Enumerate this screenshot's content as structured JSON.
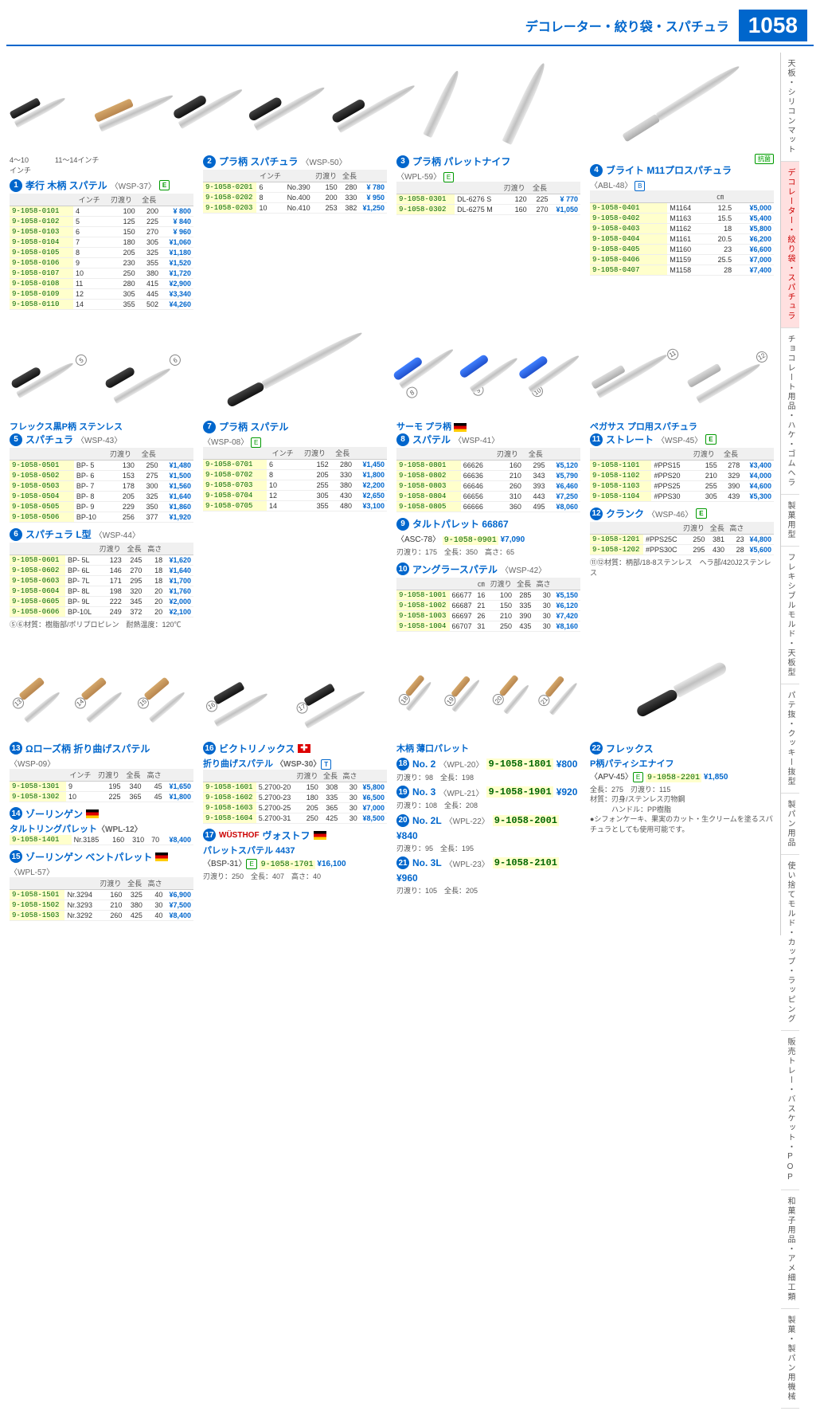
{
  "header": {
    "title": "デコレーター・絞り袋・スパチュラ",
    "page": "1058"
  },
  "sidecats": [
    "天板・シリコンマット",
    "デコレーター・絞り袋・スパチュラ",
    "チョコレート用品・ハケ・ゴムヘラ",
    "製菓用型",
    "フレキシブルモルド・天板型",
    "パテ抜・クッキー抜型",
    "製パン用品",
    "使い捨てモルド・カップ・ラッピング",
    "販売トレー・バスケット・POP",
    "和菓子用品・アメ細工類",
    "製菓・製パン用機械"
  ],
  "p1": {
    "num": "1",
    "name": "孝行 木柄 スパテル",
    "code": "〈WSP-37〉",
    "badge": "E",
    "cols": [
      "",
      "インチ",
      "刃渡り",
      "全長",
      ""
    ],
    "rows": [
      [
        "9-1058-0101",
        "4",
        "100",
        "200",
        "¥ 800"
      ],
      [
        "9-1058-0102",
        "5",
        "125",
        "225",
        "¥ 840"
      ],
      [
        "9-1058-0103",
        "6",
        "150",
        "270",
        "¥ 960"
      ],
      [
        "9-1058-0104",
        "7",
        "180",
        "305",
        "¥1,060"
      ],
      [
        "9-1058-0105",
        "8",
        "205",
        "325",
        "¥1,180"
      ],
      [
        "9-1058-0106",
        "9",
        "230",
        "355",
        "¥1,520"
      ],
      [
        "9-1058-0107",
        "10",
        "250",
        "380",
        "¥1,720"
      ],
      [
        "9-1058-0108",
        "11",
        "280",
        "415",
        "¥2,900"
      ],
      [
        "9-1058-0109",
        "12",
        "305",
        "445",
        "¥3,340"
      ],
      [
        "9-1058-0110",
        "14",
        "355",
        "502",
        "¥4,260"
      ]
    ],
    "lbl1": "4～10\nインチ",
    "lbl2": "11～14インチ"
  },
  "p2": {
    "num": "2",
    "name": "プラ柄 スパチュラ",
    "code": "〈WSP-50〉",
    "cols": [
      "",
      "インチ",
      "",
      "刃渡り",
      "全長",
      ""
    ],
    "rows": [
      [
        "9-1058-0201",
        "6",
        "No.390",
        "150",
        "280",
        "¥ 780"
      ],
      [
        "9-1058-0202",
        "8",
        "No.400",
        "200",
        "330",
        "¥ 950"
      ],
      [
        "9-1058-0203",
        "10",
        "No.410",
        "253",
        "382",
        "¥1,250"
      ]
    ]
  },
  "p3": {
    "num": "3",
    "name": "プラ柄 パレットナイフ",
    "code": "〈WPL-59〉",
    "badge": "E",
    "cols": [
      "",
      "",
      "刃渡り",
      "全長",
      ""
    ],
    "rows": [
      [
        "9-1058-0301",
        "DL-6276 S",
        "120",
        "225",
        "¥ 770"
      ],
      [
        "9-1058-0302",
        "DL-6275 M",
        "160",
        "270",
        "¥1,050"
      ]
    ]
  },
  "p4": {
    "num": "4",
    "name": "ブライト M11プロスパチュラ",
    "code": "〈ABL-48〉",
    "badge": "B",
    "antib": "抗菌",
    "cols": [
      "",
      "",
      "㎝",
      ""
    ],
    "rows": [
      [
        "9-1058-0401",
        "M1164",
        "12.5",
        "¥5,000"
      ],
      [
        "9-1058-0402",
        "M1163",
        "15.5",
        "¥5,400"
      ],
      [
        "9-1058-0403",
        "M1162",
        "18",
        "¥5,800"
      ],
      [
        "9-1058-0404",
        "M1161",
        "20.5",
        "¥6,200"
      ],
      [
        "9-1058-0405",
        "M1160",
        "23",
        "¥6,600"
      ],
      [
        "9-1058-0406",
        "M1159",
        "25.5",
        "¥7,000"
      ],
      [
        "9-1058-0407",
        "M1158",
        "28",
        "¥7,400"
      ]
    ]
  },
  "p5": {
    "num": "5",
    "name": "フレックス黒P柄 ステンレス",
    "name2": "スパチュラ",
    "code": "〈WSP-43〉",
    "cols": [
      "",
      "",
      "刃渡り",
      "全長",
      ""
    ],
    "rows": [
      [
        "9-1058-0501",
        "BP- 5",
        "130",
        "250",
        "¥1,480"
      ],
      [
        "9-1058-0502",
        "BP- 6",
        "153",
        "275",
        "¥1,500"
      ],
      [
        "9-1058-0503",
        "BP- 7",
        "178",
        "300",
        "¥1,560"
      ],
      [
        "9-1058-0504",
        "BP- 8",
        "205",
        "325",
        "¥1,640"
      ],
      [
        "9-1058-0505",
        "BP- 9",
        "229",
        "350",
        "¥1,860"
      ],
      [
        "9-1058-0506",
        "BP-10",
        "256",
        "377",
        "¥1,920"
      ]
    ]
  },
  "p6": {
    "num": "6",
    "name": "スパチュラ L型",
    "code": "〈WSP-44〉",
    "cols": [
      "",
      "",
      "刃渡り",
      "全長",
      "高さ",
      ""
    ],
    "rows": [
      [
        "9-1058-0601",
        "BP- 5L",
        "123",
        "245",
        "18",
        "¥1,620"
      ],
      [
        "9-1058-0602",
        "BP- 6L",
        "146",
        "270",
        "18",
        "¥1,640"
      ],
      [
        "9-1058-0603",
        "BP- 7L",
        "171",
        "295",
        "18",
        "¥1,700"
      ],
      [
        "9-1058-0604",
        "BP- 8L",
        "198",
        "320",
        "20",
        "¥1,760"
      ],
      [
        "9-1058-0605",
        "BP- 9L",
        "222",
        "345",
        "20",
        "¥2,000"
      ],
      [
        "9-1058-0606",
        "BP-10L",
        "249",
        "372",
        "20",
        "¥2,100"
      ]
    ],
    "note": "⑤⑥材質：樹脂部/ポリプロピレン　耐熱温度：120℃"
  },
  "p7": {
    "num": "7",
    "name": "プラ柄 スパテル",
    "code": "〈WSP-08〉",
    "badge": "E",
    "cols": [
      "",
      "インチ",
      "刃渡り",
      "全長",
      ""
    ],
    "rows": [
      [
        "9-1058-0701",
        "6",
        "152",
        "280",
        "¥1,450"
      ],
      [
        "9-1058-0702",
        "8",
        "205",
        "330",
        "¥1,800"
      ],
      [
        "9-1058-0703",
        "10",
        "255",
        "380",
        "¥2,200"
      ],
      [
        "9-1058-0704",
        "12",
        "305",
        "430",
        "¥2,650"
      ],
      [
        "9-1058-0705",
        "14",
        "355",
        "480",
        "¥3,100"
      ]
    ]
  },
  "p8": {
    "num": "8",
    "name": "サーモ プラ柄",
    "name2": "スパテル",
    "code": "〈WSP-41〉",
    "cols": [
      "",
      "",
      "刃渡り",
      "全長",
      ""
    ],
    "rows": [
      [
        "9-1058-0801",
        "66626",
        "160",
        "295",
        "¥5,120"
      ],
      [
        "9-1058-0802",
        "66636",
        "210",
        "343",
        "¥5,790"
      ],
      [
        "9-1058-0803",
        "66646",
        "260",
        "393",
        "¥6,460"
      ],
      [
        "9-1058-0804",
        "66656",
        "310",
        "443",
        "¥7,250"
      ],
      [
        "9-1058-0805",
        "66666",
        "360",
        "495",
        "¥8,060"
      ]
    ]
  },
  "p9": {
    "num": "9",
    "name": "タルトパレット 66867",
    "code": "〈ASC-78〉",
    "sku": "9-1058-0901",
    "price": "¥7,090",
    "note": "刃渡り：175　全長：350　高さ：65"
  },
  "p10": {
    "num": "10",
    "name": "アングラースパテル",
    "code": "〈WSP-42〉",
    "cols": [
      "",
      "",
      "㎝",
      "刃渡り",
      "全長",
      "高さ",
      ""
    ],
    "rows": [
      [
        "9-1058-1001",
        "66677",
        "16",
        "100",
        "285",
        "30",
        "¥5,150"
      ],
      [
        "9-1058-1002",
        "66687",
        "21",
        "150",
        "335",
        "30",
        "¥6,120"
      ],
      [
        "9-1058-1003",
        "66697",
        "26",
        "210",
        "390",
        "30",
        "¥7,420"
      ],
      [
        "9-1058-1004",
        "66707",
        "31",
        "250",
        "435",
        "30",
        "¥8,160"
      ]
    ]
  },
  "p11": {
    "num": "11",
    "name": "ペガサス プロ用スパチュラ",
    "name2": "ストレート",
    "code": "〈WSP-45〉",
    "badge": "E",
    "cols": [
      "",
      "",
      "刃渡り",
      "全長",
      ""
    ],
    "rows": [
      [
        "9-1058-1101",
        "#PPS15",
        "155",
        "278",
        "¥3,400"
      ],
      [
        "9-1058-1102",
        "#PPS20",
        "210",
        "329",
        "¥4,000"
      ],
      [
        "9-1058-1103",
        "#PPS25",
        "255",
        "390",
        "¥4,600"
      ],
      [
        "9-1058-1104",
        "#PPS30",
        "305",
        "439",
        "¥5,300"
      ]
    ]
  },
  "p12": {
    "num": "12",
    "name": "クランク",
    "code": "〈WSP-46〉",
    "badge": "E",
    "cols": [
      "",
      "",
      "刃渡り",
      "全長",
      "高さ",
      ""
    ],
    "rows": [
      [
        "9-1058-1201",
        "#PPS25C",
        "250",
        "381",
        "23",
        "¥4,800"
      ],
      [
        "9-1058-1202",
        "#PPS30C",
        "295",
        "430",
        "28",
        "¥5,600"
      ]
    ],
    "note": "⑪⑫材質：柄部/18-8ステンレス　ヘラ部/420J2ステンレス"
  },
  "p13": {
    "num": "13",
    "name": "Ωローズ柄 折り曲げスパテル",
    "code": "〈WSP-09〉",
    "cols": [
      "",
      "インチ",
      "刃渡り",
      "全長",
      "高さ",
      ""
    ],
    "rows": [
      [
        "9-1058-1301",
        "9",
        "195",
        "340",
        "45",
        "¥1,650"
      ],
      [
        "9-1058-1302",
        "10",
        "225",
        "365",
        "45",
        "¥1,800"
      ]
    ]
  },
  "p14": {
    "num": "14",
    "name": "ゾーリンゲン",
    "name2": "タルトリングパレット",
    "code": "〈WPL-12〉",
    "rows": [
      [
        "9-1058-1401",
        "Nr.3185",
        "160",
        "310",
        "70",
        "¥8,400"
      ]
    ]
  },
  "p15": {
    "num": "15",
    "name": "ゾーリンゲン ベントパレット",
    "code": "〈WPL-57〉",
    "cols": [
      "",
      "",
      "刃渡り",
      "全長",
      "高さ",
      ""
    ],
    "rows": [
      [
        "9-1058-1501",
        "Nr.3294",
        "160",
        "325",
        "40",
        "¥6,900"
      ],
      [
        "9-1058-1502",
        "Nr.3293",
        "210",
        "380",
        "30",
        "¥7,500"
      ],
      [
        "9-1058-1503",
        "Nr.3292",
        "260",
        "425",
        "40",
        "¥8,400"
      ]
    ]
  },
  "p16": {
    "num": "16",
    "name": "ビクトリノックス",
    "name2": "折り曲げスパテル",
    "code": "〈WSP-30〉",
    "badge": "T",
    "cols": [
      "",
      "",
      "刃渡り",
      "全長",
      "高さ",
      ""
    ],
    "rows": [
      [
        "9-1058-1601",
        "5.2700-20",
        "150",
        "308",
        "30",
        "¥5,800"
      ],
      [
        "9-1058-1602",
        "5.2700-23",
        "180",
        "335",
        "30",
        "¥6,500"
      ],
      [
        "9-1058-1603",
        "5.2700-25",
        "205",
        "365",
        "30",
        "¥7,000"
      ],
      [
        "9-1058-1604",
        "5.2700-31",
        "250",
        "425",
        "30",
        "¥8,500"
      ]
    ]
  },
  "p17": {
    "num": "17",
    "brand": "WÜSTHOF",
    "name": "ヴォストフ",
    "name2": "パレットスパテル 4437",
    "code": "〈BSP-31〉",
    "badge": "E",
    "sku": "9-1058-1701",
    "price": "¥16,100",
    "note": "刃渡り：250　全長：407　高さ：40"
  },
  "p18_21": {
    "title": "木柄 薄口パレット",
    "items": [
      {
        "num": "18",
        "name": "No. 2",
        "code": "〈WPL-20〉",
        "sku": "9-1058-1801",
        "price": "¥800",
        "note": "刃渡り：98　全長：198"
      },
      {
        "num": "19",
        "name": "No. 3",
        "code": "〈WPL-21〉",
        "sku": "9-1058-1901",
        "price": "¥920",
        "note": "刃渡り：108　全長：208"
      },
      {
        "num": "20",
        "name": "No. 2L",
        "code": "〈WPL-22〉",
        "sku": "9-1058-2001",
        "price": "¥840",
        "note": "刃渡り：95　全長：195"
      },
      {
        "num": "21",
        "name": "No. 3L",
        "code": "〈WPL-23〉",
        "sku": "9-1058-2101",
        "price": "¥960",
        "note": "刃渡り：105　全長：205"
      }
    ]
  },
  "p22": {
    "num": "22",
    "name": "フレックス",
    "name2": "P柄パティシエナイフ",
    "code": "〈APV-45〉",
    "badge": "E",
    "sku": "9-1058-2201",
    "price": "¥1,850",
    "note": "全長：275　刃渡り：115\n材質：刃身/ステンレス刃物鋼\n　　　ハンドル：PP樹脂\n●シフォンケーキ、果実のカット・生クリームを塗るスパチュラとしても使用可能です。"
  }
}
